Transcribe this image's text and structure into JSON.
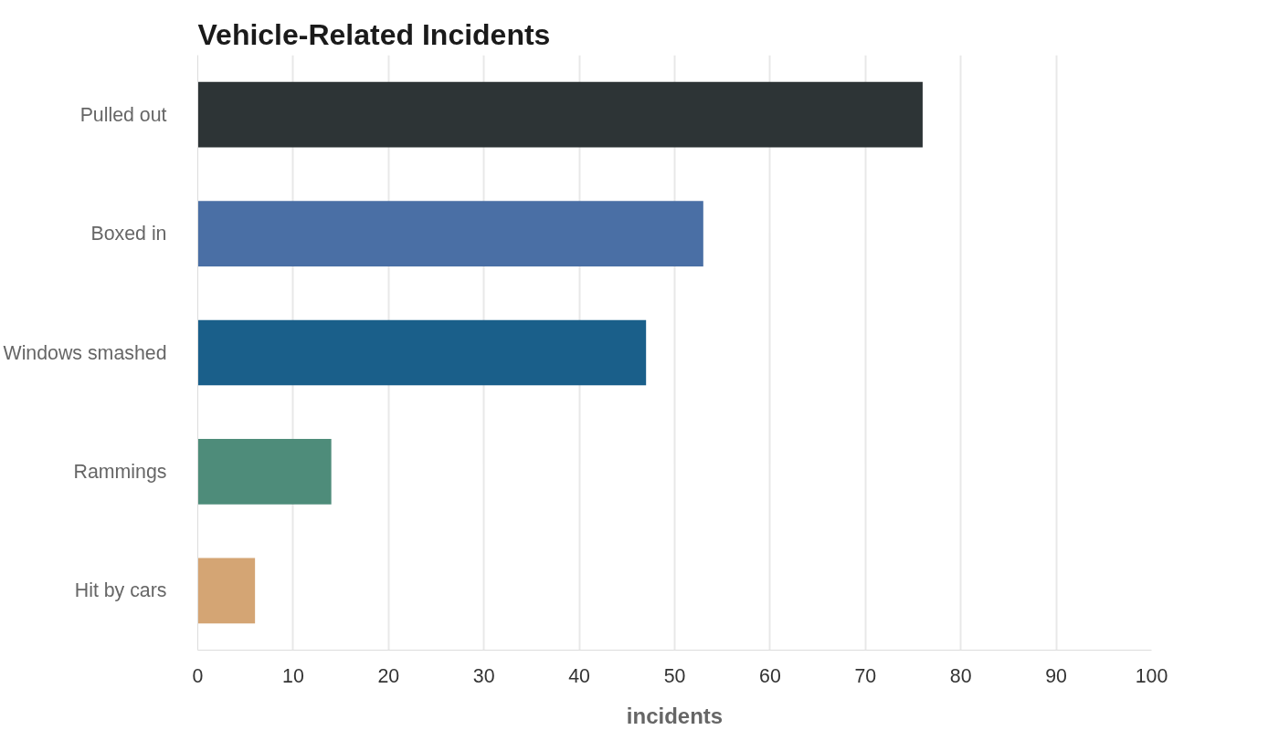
{
  "chart_data": {
    "type": "bar",
    "orientation": "horizontal",
    "title": "Vehicle-Related Incidents",
    "xlabel": "incidents",
    "categories": [
      "Pulled out",
      "Boxed in",
      "Windows smashed",
      "Rammings",
      "Hit by cars"
    ],
    "values": [
      76,
      53,
      47,
      14,
      6
    ],
    "colors": [
      "#2d3436",
      "#4a6fa5",
      "#1a5f8a",
      "#4e8c7a",
      "#d4a574"
    ],
    "xlim": [
      0,
      100
    ],
    "xticks": [
      0,
      10,
      20,
      30,
      40,
      50,
      60,
      70,
      80,
      90,
      100
    ],
    "grid": "x"
  }
}
